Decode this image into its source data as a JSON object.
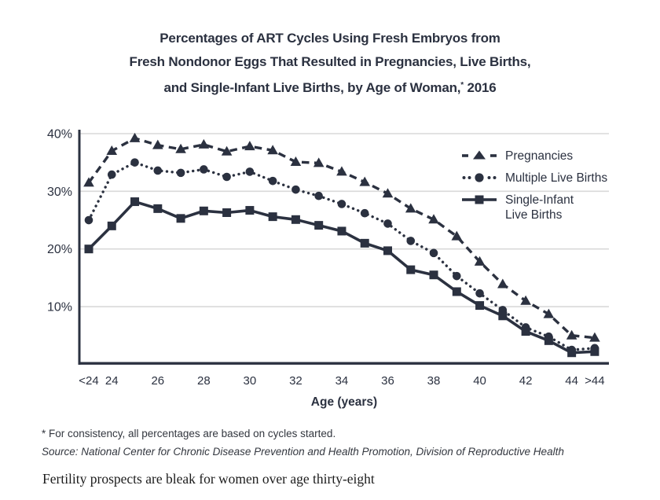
{
  "title": {
    "line1": "Percentages of ART Cycles Using Fresh Embryos from",
    "line2": "Fresh Nondonor Eggs That Resulted in Pregnancies, Live Births,",
    "line3_before_sup": "and Single-Infant Live Births, by Age of Woman,",
    "sup": "*",
    "line3_after_sup": " 2016"
  },
  "chart_data": {
    "type": "line",
    "title": "Percentages of ART Cycles Using Fresh Embryos from Fresh Nondonor Eggs That Resulted in Pregnancies, Live Births, and Single-Infant Live Births, by Age of Woman, 2016",
    "xlabel": "Age (years)",
    "ylabel": "",
    "ylim": [
      0,
      40
    ],
    "grid": "horizontal",
    "legend_position": "inside top right",
    "y_ticks": [
      "40%",
      "30%",
      "20%",
      "10%"
    ],
    "y_tick_values": [
      40,
      30,
      20,
      10
    ],
    "categories": [
      "<24",
      "24",
      "25",
      "26",
      "27",
      "28",
      "29",
      "30",
      "31",
      "32",
      "33",
      "34",
      "35",
      "36",
      "37",
      "38",
      "39",
      "40",
      "41",
      "42",
      "43",
      "44",
      ">44"
    ],
    "x_tick_indices": [
      0,
      1,
      3,
      5,
      7,
      9,
      11,
      13,
      15,
      17,
      19,
      21,
      22
    ],
    "x_tick_labels": [
      "<24",
      "24",
      "26",
      "28",
      "30",
      "32",
      "34",
      "36",
      "38",
      "40",
      "42",
      "44",
      ">44"
    ],
    "series": [
      {
        "name": "Pregnancies",
        "marker": "triangle",
        "line": "dashed",
        "values": [
          31.5,
          37.0,
          39.2,
          38.0,
          37.3,
          38.1,
          36.9,
          37.8,
          37.1,
          35.1,
          34.9,
          33.4,
          31.6,
          29.6,
          27.0,
          25.1,
          22.2,
          17.8,
          13.9,
          11.0,
          8.7,
          5.0,
          4.6
        ]
      },
      {
        "name": "Multiple Live Births",
        "marker": "circle",
        "line": "dotted",
        "values": [
          25.0,
          32.9,
          35.0,
          33.6,
          33.2,
          33.8,
          32.5,
          33.4,
          31.8,
          30.3,
          29.2,
          27.8,
          26.2,
          24.4,
          21.4,
          19.3,
          15.3,
          12.3,
          9.4,
          6.4,
          4.8,
          2.5,
          2.8
        ]
      },
      {
        "name": "Single-Infant Live Births",
        "marker": "square",
        "line": "solid",
        "values": [
          20.0,
          24.0,
          28.2,
          27.0,
          25.3,
          26.6,
          26.3,
          26.7,
          25.6,
          25.1,
          24.1,
          23.1,
          21.0,
          19.7,
          16.4,
          15.5,
          12.6,
          10.2,
          8.4,
          5.7,
          4.1,
          2.0,
          2.2
        ]
      }
    ]
  },
  "legend": {
    "items": [
      {
        "line1": "Pregnancies",
        "line2": ""
      },
      {
        "line1": "Multiple Live Births",
        "line2": ""
      },
      {
        "line1": "Single-Infant",
        "line2": "Live Births"
      }
    ]
  },
  "x_axis_label": "Age (years)",
  "footnotes": {
    "asterisk_note": "* For consistency, all percentages are based on cycles started.",
    "source": "Source: National Center for Chronic Disease Prevention and Health Promotion, Division of Reproductive Health"
  },
  "caption": "Fertility prospects are bleak for women over age thirty-eight",
  "colors": {
    "ink": "#2b3140",
    "grid": "#d9d9d9",
    "background": "#ffffff"
  }
}
